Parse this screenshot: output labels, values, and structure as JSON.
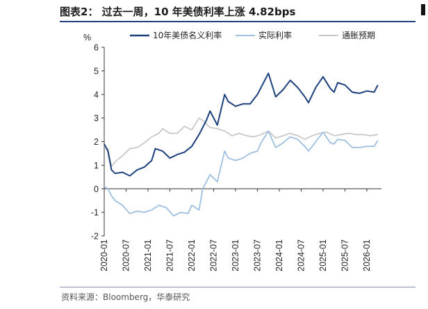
{
  "header": {
    "title": "图表2： 过去一周，10 年美债利率上涨 4.82bps"
  },
  "footer": {
    "source": "资料来源：Bloomberg，华泰研究"
  },
  "chart_data": {
    "type": "line",
    "ylabel": "%",
    "ylim": [
      -2,
      6
    ],
    "yticks": [
      -2,
      -1,
      0,
      1,
      2,
      3,
      4,
      5,
      6
    ],
    "xlim": [
      "2020-01",
      "2026-05"
    ],
    "xticks": [
      "2020-01",
      "2020-07",
      "2021-01",
      "2021-07",
      "2022-01",
      "2022-07",
      "2023-01",
      "2023-07",
      "2024-01",
      "2024-07",
      "2025-01",
      "2025-07",
      "2026-01"
    ],
    "legend_position": "top",
    "series": [
      {
        "name": "10年美债名义利率",
        "color": "#1b3f7d",
        "x": [
          "2020-01",
          "2020-02",
          "2020-03",
          "2020-04",
          "2020-06",
          "2020-08",
          "2020-10",
          "2020-12",
          "2021-02",
          "2021-03",
          "2021-05",
          "2021-07",
          "2021-09",
          "2021-11",
          "2022-01",
          "2022-03",
          "2022-05",
          "2022-06",
          "2022-08",
          "2022-10",
          "2022-11",
          "2023-01",
          "2023-03",
          "2023-05",
          "2023-07",
          "2023-08",
          "2023-10",
          "2023-11",
          "2023-12",
          "2024-02",
          "2024-04",
          "2024-06",
          "2024-08",
          "2024-09",
          "2024-11",
          "2025-01",
          "2025-03",
          "2025-04",
          "2025-05",
          "2025-07",
          "2025-09",
          "2025-11",
          "2026-01",
          "2026-03",
          "2026-04"
        ],
        "y": [
          1.9,
          1.6,
          0.8,
          0.65,
          0.7,
          0.55,
          0.8,
          0.92,
          1.2,
          1.7,
          1.6,
          1.3,
          1.45,
          1.55,
          1.8,
          2.3,
          2.9,
          3.3,
          2.7,
          4.0,
          3.7,
          3.5,
          3.6,
          3.6,
          4.0,
          4.3,
          4.9,
          4.4,
          3.9,
          4.2,
          4.6,
          4.3,
          3.9,
          3.65,
          4.3,
          4.75,
          4.25,
          4.1,
          4.5,
          4.4,
          4.1,
          4.05,
          4.15,
          4.1,
          4.4
        ]
      },
      {
        "name": "实际利率",
        "color": "#9dbfe0",
        "x": [
          "2020-01",
          "2020-02",
          "2020-03",
          "2020-04",
          "2020-06",
          "2020-08",
          "2020-10",
          "2020-12",
          "2021-02",
          "2021-04",
          "2021-06",
          "2021-08",
          "2021-10",
          "2021-12",
          "2022-01",
          "2022-03",
          "2022-04",
          "2022-06",
          "2022-08",
          "2022-10",
          "2022-11",
          "2023-01",
          "2023-03",
          "2023-05",
          "2023-07",
          "2023-08",
          "2023-10",
          "2023-12",
          "2024-02",
          "2024-04",
          "2024-06",
          "2024-08",
          "2024-09",
          "2024-11",
          "2025-01",
          "2025-03",
          "2025-04",
          "2025-05",
          "2025-07",
          "2025-09",
          "2025-11",
          "2026-01",
          "2026-03",
          "2026-04"
        ],
        "y": [
          0.1,
          0.0,
          -0.3,
          -0.5,
          -0.7,
          -1.05,
          -0.95,
          -1.0,
          -0.9,
          -0.7,
          -0.8,
          -1.15,
          -1.0,
          -1.05,
          -0.7,
          -0.9,
          0.0,
          0.6,
          0.3,
          1.6,
          1.3,
          1.2,
          1.3,
          1.5,
          1.6,
          1.95,
          2.45,
          1.75,
          1.95,
          2.2,
          2.1,
          1.8,
          1.6,
          2.0,
          2.4,
          1.95,
          1.9,
          2.1,
          2.05,
          1.75,
          1.75,
          1.8,
          1.8,
          2.05
        ]
      },
      {
        "name": "通胀预期",
        "color": "#c8c8c8",
        "x": [
          "2020-01",
          "2020-02",
          "2020-03",
          "2020-04",
          "2020-06",
          "2020-08",
          "2020-10",
          "2020-12",
          "2021-02",
          "2021-04",
          "2021-05",
          "2021-07",
          "2021-09",
          "2021-11",
          "2022-01",
          "2022-03",
          "2022-04",
          "2022-06",
          "2022-08",
          "2022-10",
          "2022-12",
          "2023-02",
          "2023-04",
          "2023-06",
          "2023-08",
          "2023-10",
          "2023-12",
          "2024-02",
          "2024-04",
          "2024-06",
          "2024-08",
          "2024-10",
          "2024-12",
          "2025-02",
          "2025-04",
          "2025-06",
          "2025-08",
          "2025-10",
          "2025-12",
          "2026-02",
          "2026-04"
        ],
        "y": [
          1.8,
          1.7,
          0.95,
          1.15,
          1.4,
          1.7,
          1.75,
          1.95,
          2.2,
          2.35,
          2.55,
          2.35,
          2.35,
          2.65,
          2.5,
          3.0,
          2.9,
          2.6,
          2.55,
          2.45,
          2.25,
          2.35,
          2.25,
          2.2,
          2.3,
          2.45,
          2.15,
          2.25,
          2.35,
          2.25,
          2.1,
          2.25,
          2.35,
          2.4,
          2.25,
          2.3,
          2.35,
          2.3,
          2.3,
          2.25,
          2.3
        ]
      }
    ]
  }
}
